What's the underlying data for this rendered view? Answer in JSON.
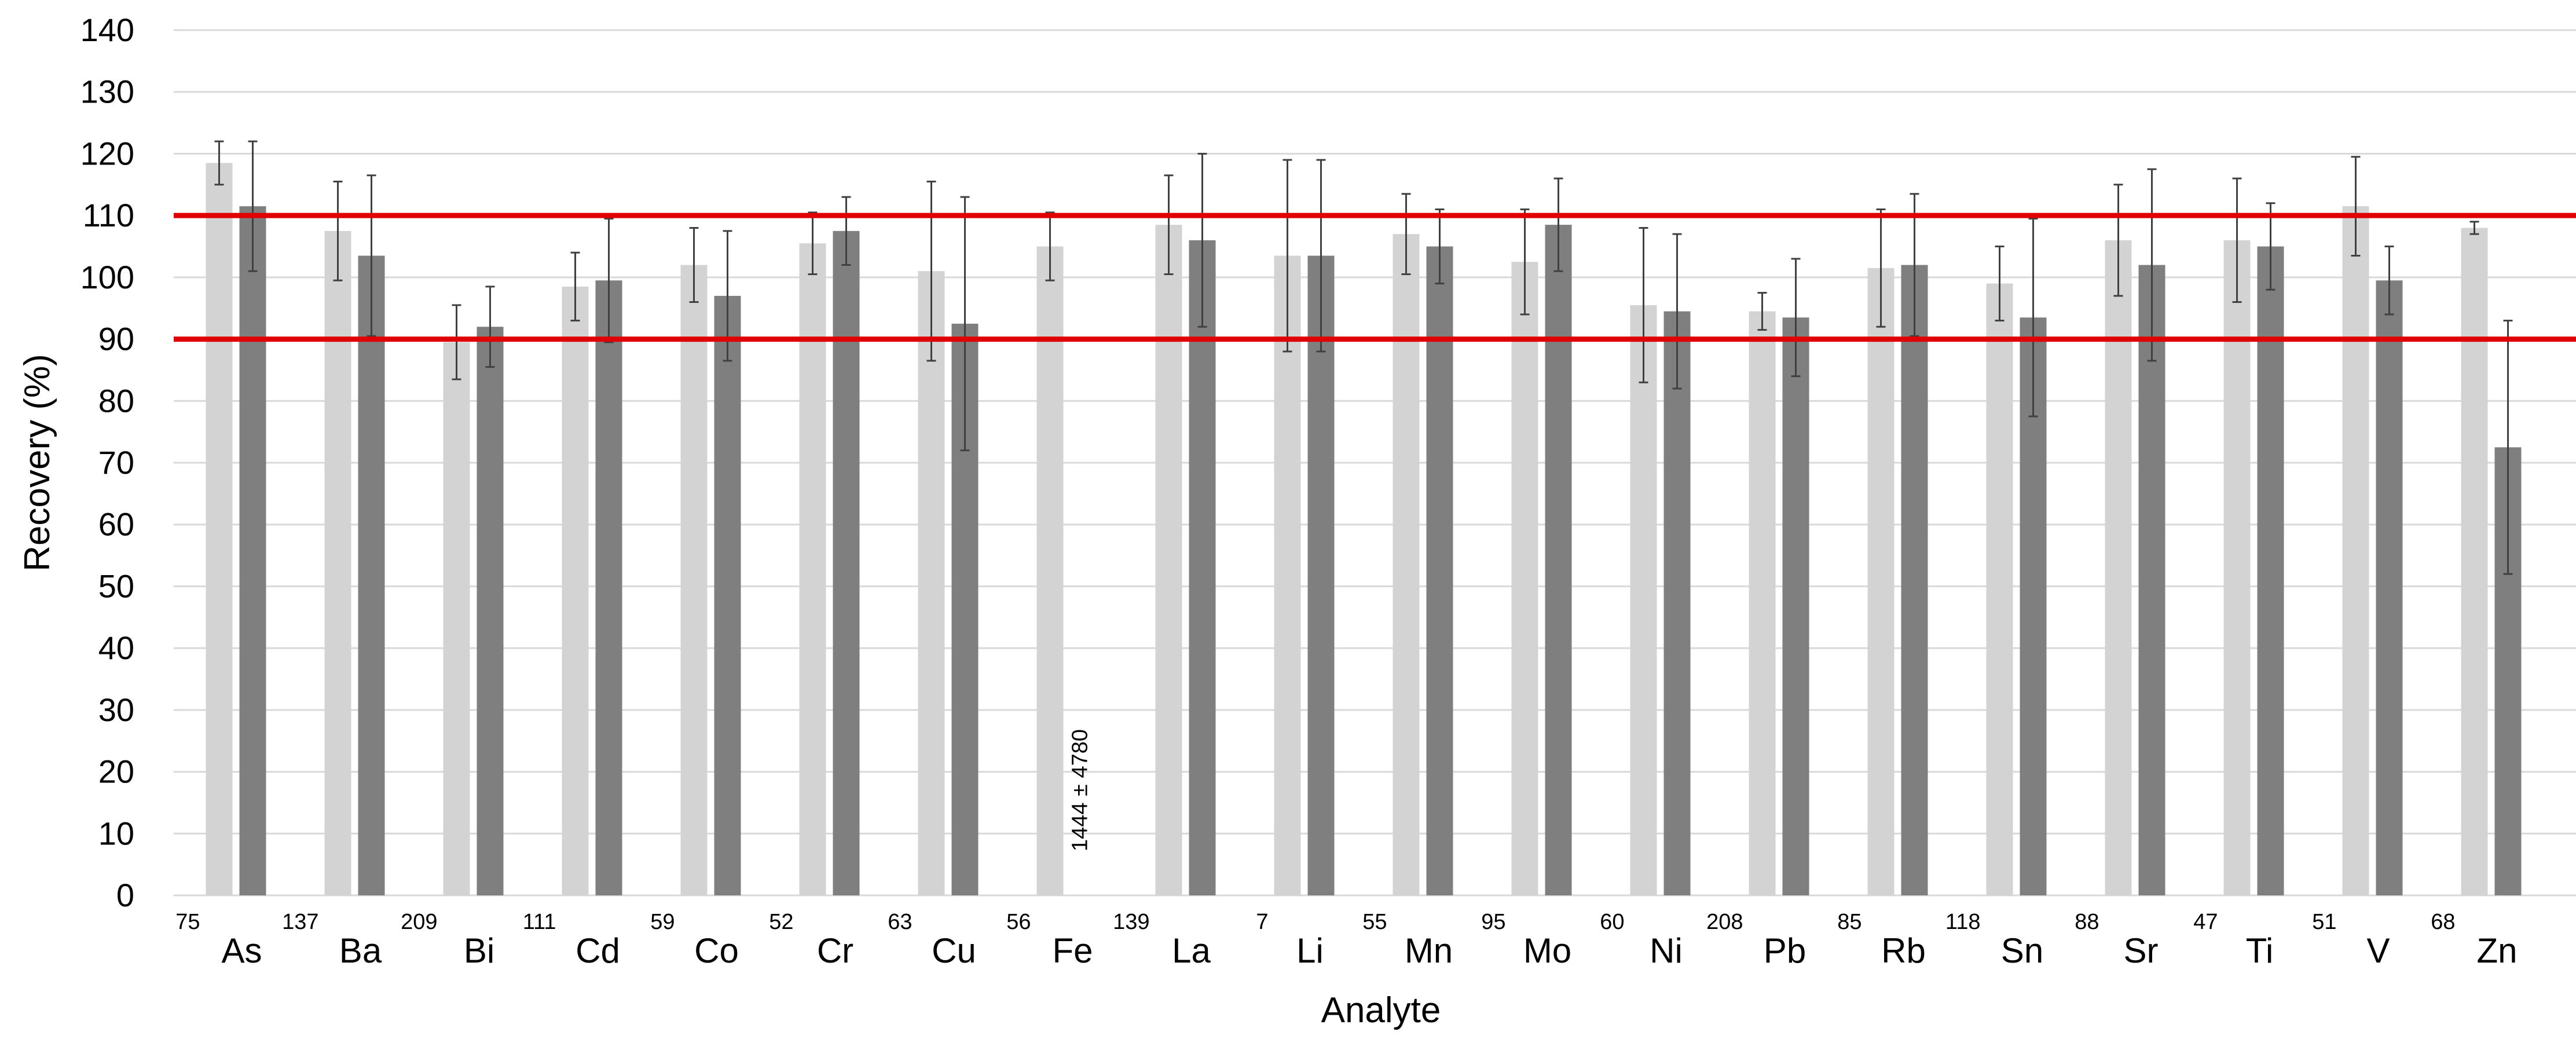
{
  "chart_data": {
    "type": "bar",
    "title": "",
    "xlabel": "Analyte",
    "ylabel": "Recovery (%)",
    "ylim": [
      0,
      140
    ],
    "yticks": [
      0,
      10,
      20,
      30,
      40,
      50,
      60,
      70,
      80,
      90,
      100,
      110,
      120,
      130,
      140
    ],
    "grid": true,
    "legend": "none",
    "categories": [
      "As",
      "Ba",
      "Bi",
      "Cd",
      "Co",
      "Cr",
      "Cu",
      "Fe",
      "La",
      "Li",
      "Mn",
      "Mo",
      "Ni",
      "Pb",
      "Rb",
      "Sn",
      "Sr",
      "Ti",
      "V",
      "Zn"
    ],
    "isotopes": [
      "75",
      "137",
      "209",
      "111",
      "59",
      "52",
      "63",
      "56",
      "139",
      "7",
      "55",
      "95",
      "60",
      "208",
      "85",
      "118",
      "88",
      "47",
      "51",
      "68"
    ],
    "series": [
      {
        "color": "#d3d3d3",
        "values": [
          118.5,
          107.5,
          89.5,
          98.5,
          102,
          105.5,
          101,
          105,
          108.5,
          103.5,
          107,
          102.5,
          95.5,
          94.5,
          101.5,
          99,
          106,
          106,
          111.5,
          108
        ],
        "errors": [
          3.5,
          8,
          6,
          5.5,
          6,
          5,
          14.5,
          5.5,
          8,
          15.5,
          6.5,
          8.5,
          12.5,
          3,
          9.5,
          6,
          9,
          10,
          8,
          1
        ]
      },
      {
        "color": "#7f7f7f",
        "values": [
          111.5,
          103.5,
          92,
          99.5,
          97,
          107.5,
          92.5,
          null,
          106,
          103.5,
          105,
          108.5,
          94.5,
          93.5,
          102,
          93.5,
          102,
          105,
          99.5,
          72.5
        ],
        "errors": [
          10.5,
          13,
          6.5,
          10,
          10.5,
          5.5,
          20.5,
          null,
          14,
          15.5,
          6,
          7.5,
          12.5,
          9.5,
          11.5,
          16,
          15.5,
          7,
          5.5,
          20.5
        ]
      }
    ],
    "reference_lines": [
      {
        "y": 110,
        "color": "#e00000"
      },
      {
        "y": 90,
        "color": "#e00000"
      }
    ],
    "annotations": [
      {
        "category": "Fe",
        "series": 2,
        "text": "1444 ± 4780"
      }
    ]
  }
}
